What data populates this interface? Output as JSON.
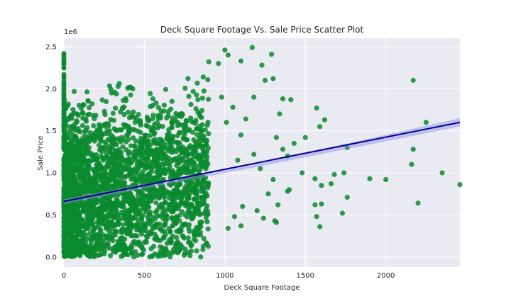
{
  "chart_data": {
    "type": "scatter",
    "title": "Deck Square Footage Vs. Sale Price Scatter Plot",
    "xlabel": "Deck Square Footage",
    "ylabel": "Sale Price",
    "y_offset_label": "1e6",
    "xlim": [
      0,
      2460
    ],
    "ylim": [
      -0.12,
      2.6
    ],
    "x_ticks": [
      0,
      500,
      1000,
      1500,
      2000
    ],
    "x_tick_labels": [
      "0",
      "500",
      "1000",
      "1500",
      "2000"
    ],
    "y_ticks": [
      0.0,
      0.5,
      1.0,
      1.5,
      2.0,
      2.5
    ],
    "y_tick_labels": [
      "0.0",
      "0.5",
      "1.0",
      "1.5",
      "2.0",
      "2.5"
    ],
    "grid": true,
    "background_color": "#eaeaf2",
    "point_color": "#0b8a2e",
    "regression_color": "#00008b",
    "ci_color": "#8c8ce6",
    "regression_line": {
      "x": [
        0,
        2460
      ],
      "y": [
        0.66,
        1.6
      ]
    },
    "confidence_band": {
      "x": [
        0,
        1200,
        2460
      ],
      "lower": [
        0.63,
        1.07,
        1.55
      ],
      "upper": [
        0.69,
        1.11,
        1.65
      ]
    },
    "dense_cloud": {
      "note_visible": false,
      "x_range": [
        0,
        900
      ],
      "y_range": [
        0.0,
        2.5
      ],
      "count": 2600
    },
    "points": [
      {
        "x": 2170,
        "y": 2.1
      },
      {
        "x": 2250,
        "y": 1.6
      },
      {
        "x": 2170,
        "y": 1.28
      },
      {
        "x": 2160,
        "y": 1.1
      },
      {
        "x": 2350,
        "y": 1.0
      },
      {
        "x": 2460,
        "y": 0.86
      },
      {
        "x": 2200,
        "y": 0.64
      },
      {
        "x": 2000,
        "y": 0.92
      },
      {
        "x": 1900,
        "y": 0.93
      },
      {
        "x": 1760,
        "y": 1.3
      },
      {
        "x": 1740,
        "y": 1.0
      },
      {
        "x": 1680,
        "y": 0.98
      },
      {
        "x": 1660,
        "y": 0.87
      },
      {
        "x": 1600,
        "y": 0.85
      },
      {
        "x": 1560,
        "y": 0.93
      },
      {
        "x": 1620,
        "y": 1.63
      },
      {
        "x": 1590,
        "y": 1.55
      },
      {
        "x": 1570,
        "y": 1.77
      },
      {
        "x": 1500,
        "y": 1.42
      },
      {
        "x": 1480,
        "y": 1.0
      },
      {
        "x": 1560,
        "y": 0.62
      },
      {
        "x": 1600,
        "y": 0.63
      },
      {
        "x": 1730,
        "y": 0.52
      },
      {
        "x": 1590,
        "y": 0.36
      },
      {
        "x": 1570,
        "y": 0.48
      },
      {
        "x": 1760,
        "y": 0.71
      },
      {
        "x": 1410,
        "y": 1.87
      },
      {
        "x": 1360,
        "y": 1.88
      },
      {
        "x": 1340,
        "y": 1.7
      },
      {
        "x": 1390,
        "y": 1.2
      },
      {
        "x": 1430,
        "y": 1.35
      },
      {
        "x": 1290,
        "y": 2.41
      },
      {
        "x": 1170,
        "y": 2.49
      },
      {
        "x": 1100,
        "y": 2.33
      },
      {
        "x": 1230,
        "y": 2.28
      },
      {
        "x": 1300,
        "y": 2.12
      },
      {
        "x": 1250,
        "y": 2.1
      },
      {
        "x": 1020,
        "y": 2.4
      },
      {
        "x": 1000,
        "y": 2.46
      },
      {
        "x": 960,
        "y": 2.3
      },
      {
        "x": 900,
        "y": 2.32
      },
      {
        "x": 1180,
        "y": 1.9
      },
      {
        "x": 1130,
        "y": 1.64
      },
      {
        "x": 1320,
        "y": 1.42
      },
      {
        "x": 1360,
        "y": 1.28
      },
      {
        "x": 1300,
        "y": 0.92
      },
      {
        "x": 1390,
        "y": 0.78
      },
      {
        "x": 1330,
        "y": 0.62
      },
      {
        "x": 1310,
        "y": 0.43
      },
      {
        "x": 1320,
        "y": 0.41
      },
      {
        "x": 1240,
        "y": 0.46
      },
      {
        "x": 1200,
        "y": 0.55
      },
      {
        "x": 1110,
        "y": 0.6
      },
      {
        "x": 1060,
        "y": 0.48
      },
      {
        "x": 1100,
        "y": 0.37
      },
      {
        "x": 1020,
        "y": 0.34
      },
      {
        "x": 850,
        "y": 0.0
      },
      {
        "x": 1400,
        "y": 0.8
      },
      {
        "x": 1270,
        "y": 0.75
      },
      {
        "x": 1220,
        "y": 1.05
      },
      {
        "x": 1180,
        "y": 1.22
      },
      {
        "x": 1100,
        "y": 1.45
      },
      {
        "x": 1050,
        "y": 1.78
      },
      {
        "x": 980,
        "y": 1.9
      },
      {
        "x": 1010,
        "y": 1.6
      },
      {
        "x": 1080,
        "y": 1.15
      }
    ]
  }
}
